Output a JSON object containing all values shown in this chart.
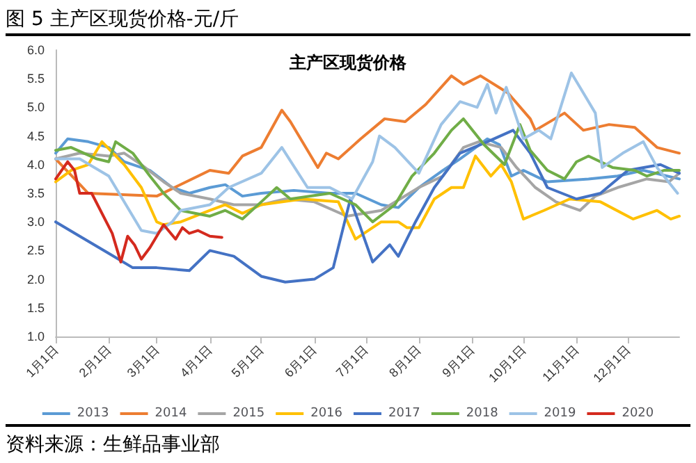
{
  "chart_data": {
    "type": "line",
    "title": "图 5 主产区现货价格-元/斤",
    "subtitle": "主产区现货价格",
    "annotations": [
      "资料来源：生鲜品事业部"
    ],
    "xlim": [
      "--01-01",
      "--12-31"
    ],
    "xticks": [
      {
        "value": "--01-01",
        "label": "1月1日"
      },
      {
        "value": "--02-01",
        "label": "2月1日"
      },
      {
        "value": "--03-01",
        "label": "3月1日"
      },
      {
        "value": "--04-01",
        "label": "4月1日"
      },
      {
        "value": "--05-01",
        "label": "5月1日"
      },
      {
        "value": "--06-01",
        "label": "6月1日"
      },
      {
        "value": "--07-01",
        "label": "7月1日"
      },
      {
        "value": "--08-01",
        "label": "8月1日"
      },
      {
        "value": "--09-01",
        "label": "9月1日"
      },
      {
        "value": "--10-01",
        "label": "10月1日"
      },
      {
        "value": "--11-01",
        "label": "11月1日"
      },
      {
        "value": "--12-01",
        "label": "12月1日"
      }
    ],
    "ylim": [
      1,
      6
    ],
    "yticks": [
      {
        "value": 1,
        "label": "1.0"
      },
      {
        "value": 1.5,
        "label": "1.5"
      },
      {
        "value": 2,
        "label": "2.0"
      },
      {
        "value": 2.5,
        "label": "2.5"
      },
      {
        "value": 3,
        "label": "3.0"
      },
      {
        "value": 3.5,
        "label": "3.5"
      },
      {
        "value": 4,
        "label": "4.0"
      },
      {
        "value": 4.5,
        "label": "4.5"
      },
      {
        "value": 5,
        "label": "5.0"
      },
      {
        "value": 5.5,
        "label": "5.5"
      },
      {
        "value": 6,
        "label": "6.0"
      }
    ],
    "grid": false,
    "legend": "bottom",
    "marker": "none",
    "line_style": "solid",
    "series": [
      {
        "name": "2013",
        "color": "#5b9bd5",
        "x": [
          "--01-01",
          "--01-08",
          "--01-20",
          "--02-01",
          "--02-10",
          "--02-25",
          "--03-10",
          "--03-20",
          "--04-01",
          "--04-10",
          "--04-20",
          "--05-01",
          "--05-20",
          "--06-10",
          "--06-25",
          "--07-10",
          "--07-20",
          "--08-01",
          "--08-15",
          "--08-25",
          "--09-01",
          "--09-10",
          "--09-17",
          "--09-24",
          "--10-01",
          "--10-15",
          "--11-08",
          "--11-25",
          "--12-10",
          "--12-31"
        ],
        "values": [
          4.2,
          4.45,
          4.4,
          4.3,
          4.05,
          3.9,
          3.6,
          3.5,
          3.6,
          3.65,
          3.45,
          3.5,
          3.55,
          3.5,
          3.5,
          3.3,
          3.25,
          3.6,
          3.9,
          4.1,
          4.25,
          4.45,
          4.35,
          3.8,
          3.9,
          3.7,
          3.75,
          3.8,
          3.9,
          3.75
        ]
      },
      {
        "name": "2014",
        "color": "#ed7d31",
        "x": [
          "--01-01",
          "--01-20",
          "--03-01",
          "--04-01",
          "--04-12",
          "--04-20",
          "--05-01",
          "--05-13",
          "--05-18",
          "--06-03",
          "--06-08",
          "--06-15",
          "--06-28",
          "--07-12",
          "--07-24",
          "--08-05",
          "--08-20",
          "--08-27",
          "--09-06",
          "--09-22",
          "--10-05",
          "--10-08",
          "--10-25",
          "--11-05",
          "--11-20",
          "--12-05",
          "--12-18",
          "--12-31"
        ],
        "values": [
          4.1,
          3.5,
          3.45,
          3.9,
          3.85,
          4.15,
          4.3,
          4.95,
          4.75,
          3.95,
          4.2,
          4.1,
          4.45,
          4.8,
          4.75,
          5.05,
          5.55,
          5.4,
          5.55,
          5.25,
          4.8,
          4.6,
          4.9,
          4.6,
          4.7,
          4.65,
          4.3,
          4.2
        ]
      },
      {
        "name": "2015",
        "color": "#a5a5a5",
        "x": [
          "--01-01",
          "--01-15",
          "--02-01",
          "--02-10",
          "--02-20",
          "--03-05",
          "--03-15",
          "--04-01",
          "--04-15",
          "--05-01",
          "--05-15",
          "--06-01",
          "--06-20",
          "--07-10",
          "--08-01",
          "--08-15",
          "--08-27",
          "--09-05",
          "--09-18",
          "--09-27",
          "--10-08",
          "--10-20",
          "--11-03",
          "--11-12",
          "--11-25",
          "--12-12",
          "--12-25",
          "--12-31"
        ],
        "values": [
          4.1,
          4.2,
          4.15,
          4.2,
          4.0,
          3.7,
          3.5,
          3.4,
          3.3,
          3.3,
          3.4,
          3.35,
          3.1,
          3.2,
          3.6,
          3.8,
          4.3,
          4.4,
          4.3,
          3.95,
          3.6,
          3.35,
          3.2,
          3.45,
          3.6,
          3.75,
          3.7,
          3.85
        ]
      },
      {
        "name": "2016",
        "color": "#ffc000",
        "x": [
          "--01-01",
          "--01-10",
          "--01-20",
          "--01-28",
          "--02-10",
          "--02-20",
          "--03-01",
          "--03-05",
          "--03-15",
          "--04-01",
          "--04-10",
          "--04-20",
          "--05-01",
          "--05-25",
          "--06-15",
          "--06-25",
          "--07-10",
          "--07-20",
          "--07-25",
          "--08-01",
          "--08-10",
          "--08-20",
          "--08-27",
          "--09-03",
          "--09-12",
          "--09-18",
          "--09-24",
          "--10-01",
          "--10-13",
          "--10-28",
          "--11-15",
          "--12-04",
          "--12-18",
          "--12-26",
          "--12-31"
        ],
        "values": [
          3.7,
          3.9,
          4.0,
          4.4,
          4.0,
          3.6,
          3.0,
          2.95,
          3.0,
          3.2,
          3.3,
          3.15,
          3.3,
          3.4,
          3.35,
          2.7,
          3.0,
          3.0,
          2.9,
          2.9,
          3.4,
          3.6,
          3.6,
          4.15,
          3.8,
          4.0,
          3.7,
          3.05,
          3.2,
          3.4,
          3.35,
          3.05,
          3.2,
          3.05,
          3.1
        ]
      },
      {
        "name": "2017",
        "color": "#4472c4",
        "x": [
          "--01-01",
          "--01-15",
          "--02-01",
          "--02-15",
          "--03-01",
          "--03-20",
          "--04-01",
          "--04-15",
          "--05-01",
          "--05-15",
          "--06-01",
          "--06-12",
          "--06-22",
          "--07-05",
          "--07-15",
          "--07-20",
          "--07-30",
          "--08-10",
          "--08-25",
          "--09-10",
          "--09-25",
          "--10-05",
          "--10-15",
          "--11-01",
          "--11-15",
          "--12-01",
          "--12-20",
          "--12-31"
        ],
        "values": [
          3.0,
          2.75,
          2.45,
          2.2,
          2.2,
          2.15,
          2.5,
          2.4,
          2.05,
          1.95,
          2.0,
          2.2,
          3.4,
          2.3,
          2.6,
          2.4,
          3.0,
          3.6,
          4.2,
          4.4,
          4.6,
          4.2,
          3.6,
          3.4,
          3.5,
          3.9,
          4.0,
          3.85
        ]
      },
      {
        "name": "2018",
        "color": "#70ad47",
        "x": [
          "--01-01",
          "--01-10",
          "--01-25",
          "--02-01",
          "--02-05",
          "--02-15",
          "--02-25",
          "--03-05",
          "--03-15",
          "--04-01",
          "--04-10",
          "--04-20",
          "--05-01",
          "--05-10",
          "--05-18",
          "--06-10",
          "--06-25",
          "--07-05",
          "--07-18",
          "--07-28",
          "--08-10",
          "--08-20",
          "--08-27",
          "--09-08",
          "--09-20",
          "--09-29",
          "--10-05",
          "--10-15",
          "--10-25",
          "--11-01",
          "--11-08",
          "--11-22",
          "--12-05",
          "--12-12",
          "--12-22",
          "--12-31"
        ],
        "values": [
          4.25,
          4.3,
          4.1,
          4.05,
          4.4,
          4.2,
          3.8,
          3.5,
          3.2,
          3.1,
          3.2,
          3.05,
          3.35,
          3.6,
          3.4,
          3.5,
          3.3,
          3.0,
          3.3,
          3.8,
          4.2,
          4.6,
          4.8,
          4.35,
          4.0,
          4.7,
          4.25,
          3.9,
          3.75,
          4.05,
          4.15,
          3.95,
          3.9,
          3.8,
          3.9,
          3.9
        ]
      },
      {
        "name": "2019",
        "color": "#9dc3e6",
        "x": [
          "--01-01",
          "--01-15",
          "--02-01",
          "--02-20",
          "--03-01",
          "--03-10",
          "--03-15",
          "--04-01",
          "--04-12",
          "--05-01",
          "--05-13",
          "--05-28",
          "--06-10",
          "--06-23",
          "--07-05",
          "--07-09",
          "--07-18",
          "--08-01",
          "--08-14",
          "--08-25",
          "--09-04",
          "--09-10",
          "--09-15",
          "--09-21",
          "--10-01",
          "--10-10",
          "--10-17",
          "--10-29",
          "--11-03",
          "--11-12",
          "--11-16",
          "--11-28",
          "--12-10",
          "--12-18",
          "--12-30"
        ],
        "values": [
          4.1,
          4.1,
          3.8,
          2.85,
          2.8,
          3.0,
          3.2,
          3.3,
          3.6,
          3.85,
          4.3,
          3.6,
          3.6,
          3.4,
          4.05,
          4.5,
          4.3,
          3.85,
          4.7,
          5.1,
          5.0,
          5.4,
          4.9,
          5.35,
          4.45,
          4.6,
          4.45,
          5.6,
          5.35,
          4.9,
          3.95,
          4.2,
          4.4,
          3.95,
          3.5
        ]
      },
      {
        "name": "2020",
        "color": "#d42a1e",
        "x": [
          "--01-01",
          "--01-08",
          "--01-12",
          "--01-15",
          "--01-22",
          "--02-03",
          "--02-08",
          "--02-12",
          "--02-16",
          "--02-20",
          "--02-25",
          "--03-05",
          "--03-12",
          "--03-16",
          "--03-20",
          "--03-25",
          "--04-01",
          "--04-08"
        ],
        "values": [
          3.75,
          4.05,
          3.9,
          3.5,
          3.5,
          2.8,
          2.3,
          2.75,
          2.6,
          2.35,
          2.55,
          2.95,
          2.7,
          2.9,
          2.8,
          2.85,
          2.75,
          2.73
        ]
      }
    ]
  }
}
